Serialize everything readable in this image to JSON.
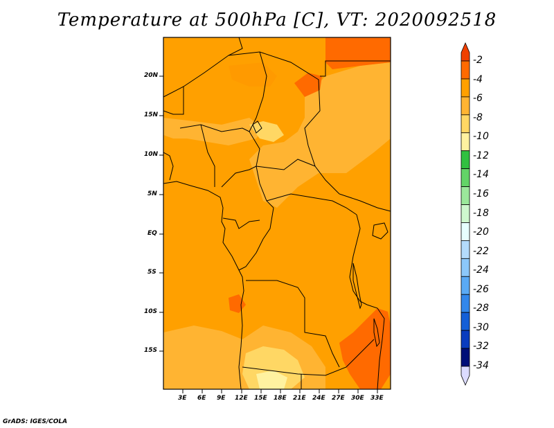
{
  "title": "Temperature at 500hPa [C], VT: 2020092518",
  "credit": "GrADS: IGES/COLA",
  "map": {
    "lon_range": [
      0,
      35
    ],
    "lat_range": [
      -20,
      25
    ],
    "x_ticks": [
      "3E",
      "6E",
      "9E",
      "12E",
      "15E",
      "18E",
      "21E",
      "24E",
      "27E",
      "30E",
      "33E"
    ],
    "y_ticks": [
      "20N",
      "15N",
      "10N",
      "5N",
      "EQ",
      "5S",
      "10S",
      "15S"
    ]
  },
  "colorbar": {
    "labels": [
      "-2",
      "-4",
      "-6",
      "-8",
      "-10",
      "-12",
      "-14",
      "-16",
      "-18",
      "-20",
      "-22",
      "-24",
      "-26",
      "-28",
      "-30",
      "-32",
      "-34"
    ],
    "colors": [
      "#f04000",
      "#ff6a00",
      "#ffa000",
      "#ffb432",
      "#ffd764",
      "#fff2a0",
      "#31c040",
      "#63d467",
      "#9be89b",
      "#cef7ce",
      "#e7ffff",
      "#b4dcfc",
      "#8cc8fa",
      "#5aaaf5",
      "#3287eb",
      "#145fd7",
      "#0a3cbe",
      "#000f78",
      "#dcdcff"
    ]
  }
}
